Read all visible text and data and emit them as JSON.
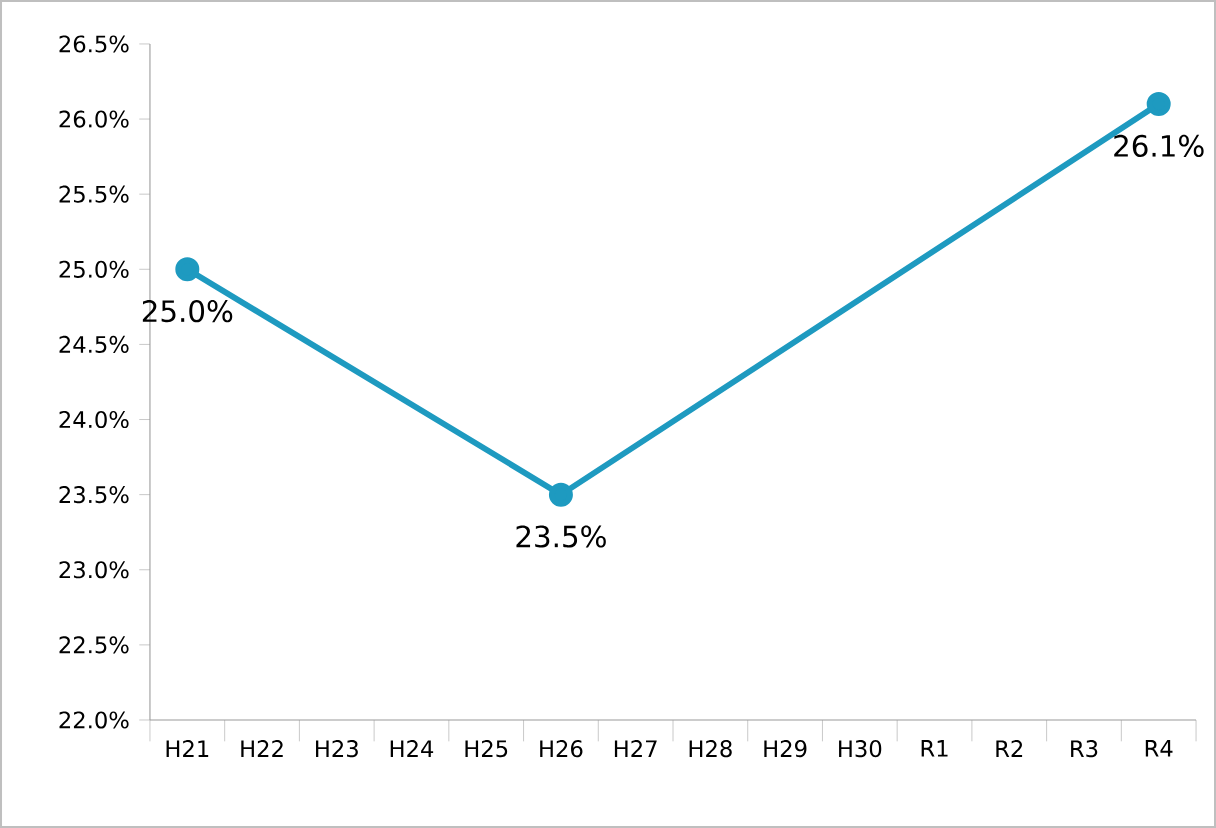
{
  "chart_data": {
    "type": "line",
    "categories": [
      "H21",
      "H22",
      "H23",
      "H24",
      "H25",
      "H26",
      "H27",
      "H28",
      "H29",
      "H30",
      "R1",
      "R2",
      "R3",
      "R4"
    ],
    "series": [
      {
        "color": "#1e9ac0",
        "values": [
          25.0,
          null,
          null,
          null,
          null,
          23.5,
          null,
          null,
          null,
          null,
          null,
          null,
          null,
          26.1
        ],
        "value_labels": [
          "25.0%",
          null,
          null,
          null,
          null,
          "23.5%",
          null,
          null,
          null,
          null,
          null,
          null,
          null,
          "26.1%"
        ]
      }
    ],
    "ylim": [
      22.0,
      26.5
    ],
    "yticks": [
      {
        "value": 22.0,
        "label": "22.0%"
      },
      {
        "value": 22.5,
        "label": "22.5%"
      },
      {
        "value": 23.0,
        "label": "23.0%"
      },
      {
        "value": 23.5,
        "label": "23.5%"
      },
      {
        "value": 24.0,
        "label": "24.0%"
      },
      {
        "value": 24.5,
        "label": "24.5%"
      },
      {
        "value": 25.0,
        "label": "25.0%"
      },
      {
        "value": 25.5,
        "label": "25.5%"
      },
      {
        "value": 26.0,
        "label": "26.0%"
      },
      {
        "value": 26.5,
        "label": "26.5%"
      }
    ],
    "grid": false,
    "marker": "circle",
    "line_style": "solid"
  }
}
